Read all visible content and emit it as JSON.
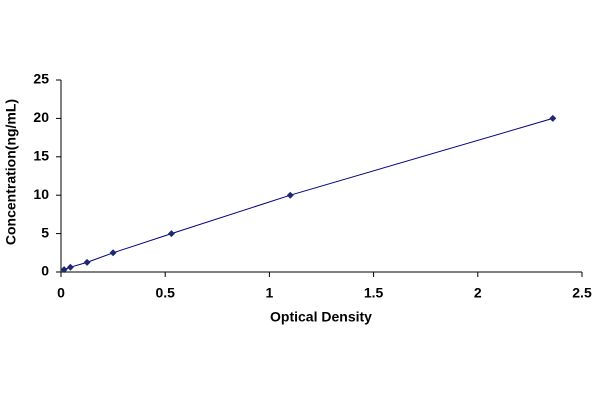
{
  "chart_data": {
    "type": "line",
    "x_label": "Optical Density",
    "y_label": "Concentration(ng/mL)",
    "x": [
      0.015,
      0.045,
      0.125,
      0.25,
      0.53,
      1.1,
      2.36
    ],
    "values": [
      0.3125,
      0.625,
      1.25,
      2.5,
      5,
      10,
      20
    ],
    "color": "#000080",
    "marker_color": "#1f2a6e",
    "xlim": [
      0,
      2.5
    ],
    "xticks": [
      0,
      0.5,
      1,
      1.5,
      2,
      2.5
    ],
    "ylim": [
      0,
      25
    ],
    "yticks": [
      0,
      5,
      10,
      15,
      20,
      25
    ],
    "grid": false
  }
}
